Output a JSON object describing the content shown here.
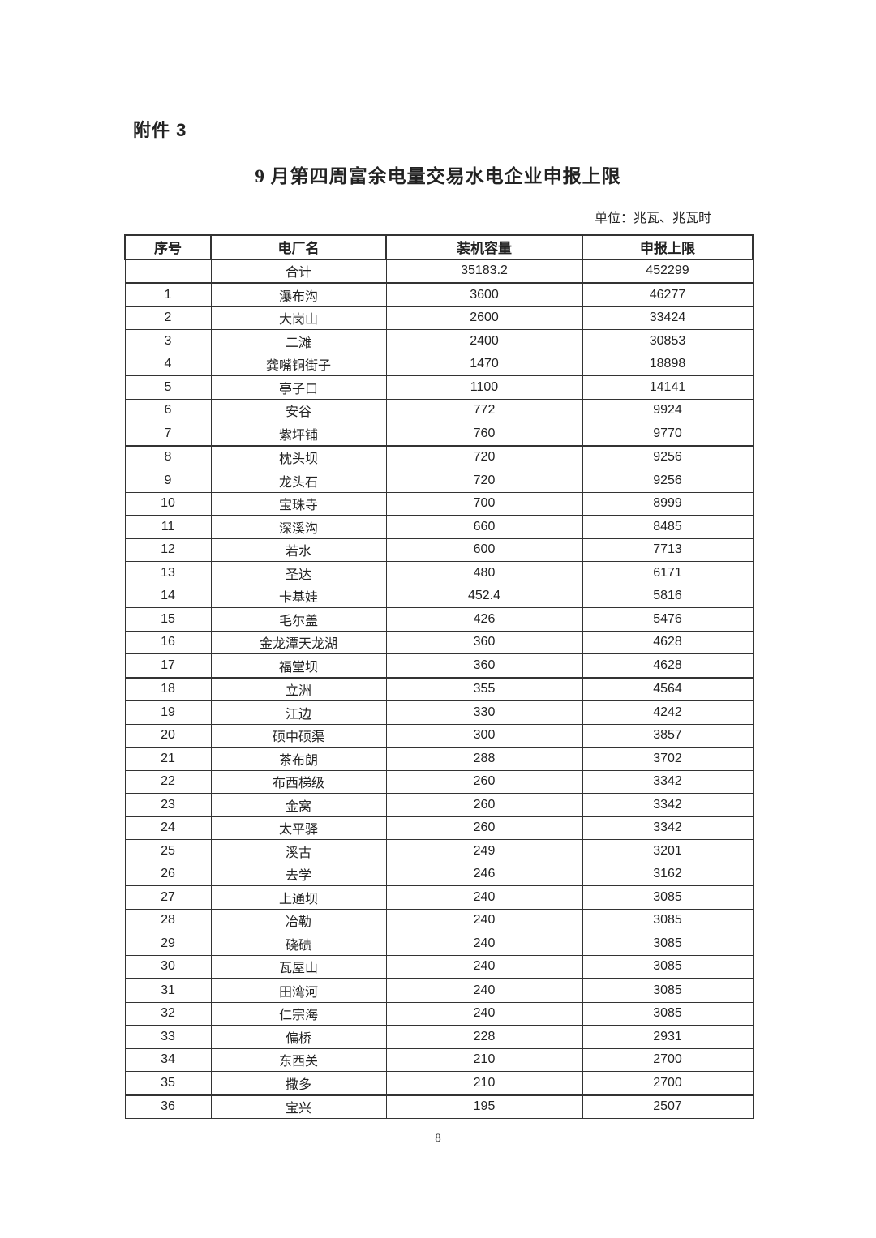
{
  "attachment_label": "附件 3",
  "title": "9 月第四周富余电量交易水电企业申报上限",
  "unit": "单位：兆瓦、兆瓦时",
  "table": {
    "headers": [
      "序号",
      "电厂名",
      "装机容量",
      "申报上限"
    ],
    "total": {
      "no": "",
      "name": "合计",
      "capacity": "35183.2",
      "limit": "452299"
    },
    "rows": [
      [
        "1",
        "瀑布沟",
        "3600",
        "46277"
      ],
      [
        "2",
        "大岗山",
        "2600",
        "33424"
      ],
      [
        "3",
        "二滩",
        "2400",
        "30853"
      ],
      [
        "4",
        "龚嘴铜街子",
        "1470",
        "18898"
      ],
      [
        "5",
        "亭子口",
        "1100",
        "14141"
      ],
      [
        "6",
        "安谷",
        "772",
        "9924"
      ],
      [
        "7",
        "紫坪铺",
        "760",
        "9770"
      ],
      [
        "8",
        "枕头坝",
        "720",
        "9256"
      ],
      [
        "9",
        "龙头石",
        "720",
        "9256"
      ],
      [
        "10",
        "宝珠寺",
        "700",
        "8999"
      ],
      [
        "11",
        "深溪沟",
        "660",
        "8485"
      ],
      [
        "12",
        "若水",
        "600",
        "7713"
      ],
      [
        "13",
        "圣达",
        "480",
        "6171"
      ],
      [
        "14",
        "卡基娃",
        "452.4",
        "5816"
      ],
      [
        "15",
        "毛尔盖",
        "426",
        "5476"
      ],
      [
        "16",
        "金龙潭天龙湖",
        "360",
        "4628"
      ],
      [
        "17",
        "福堂坝",
        "360",
        "4628"
      ],
      [
        "18",
        "立洲",
        "355",
        "4564"
      ],
      [
        "19",
        "江边",
        "330",
        "4242"
      ],
      [
        "20",
        "硕中硕渠",
        "300",
        "3857"
      ],
      [
        "21",
        "茶布朗",
        "288",
        "3702"
      ],
      [
        "22",
        "布西梯级",
        "260",
        "3342"
      ],
      [
        "23",
        "金窝",
        "260",
        "3342"
      ],
      [
        "24",
        "太平驿",
        "260",
        "3342"
      ],
      [
        "25",
        "溪古",
        "249",
        "3201"
      ],
      [
        "26",
        "去学",
        "246",
        "3162"
      ],
      [
        "27",
        "上通坝",
        "240",
        "3085"
      ],
      [
        "28",
        "冶勒",
        "240",
        "3085"
      ],
      [
        "29",
        "硗碛",
        "240",
        "3085"
      ],
      [
        "30",
        "瓦屋山",
        "240",
        "3085"
      ],
      [
        "31",
        "田湾河",
        "240",
        "3085"
      ],
      [
        "32",
        "仁宗海",
        "240",
        "3085"
      ],
      [
        "33",
        "偏桥",
        "228",
        "2931"
      ],
      [
        "34",
        "东西关",
        "210",
        "2700"
      ],
      [
        "35",
        "撒多",
        "210",
        "2700"
      ],
      [
        "36",
        "宝兴",
        "195",
        "2507"
      ]
    ]
  },
  "page_number": "8"
}
